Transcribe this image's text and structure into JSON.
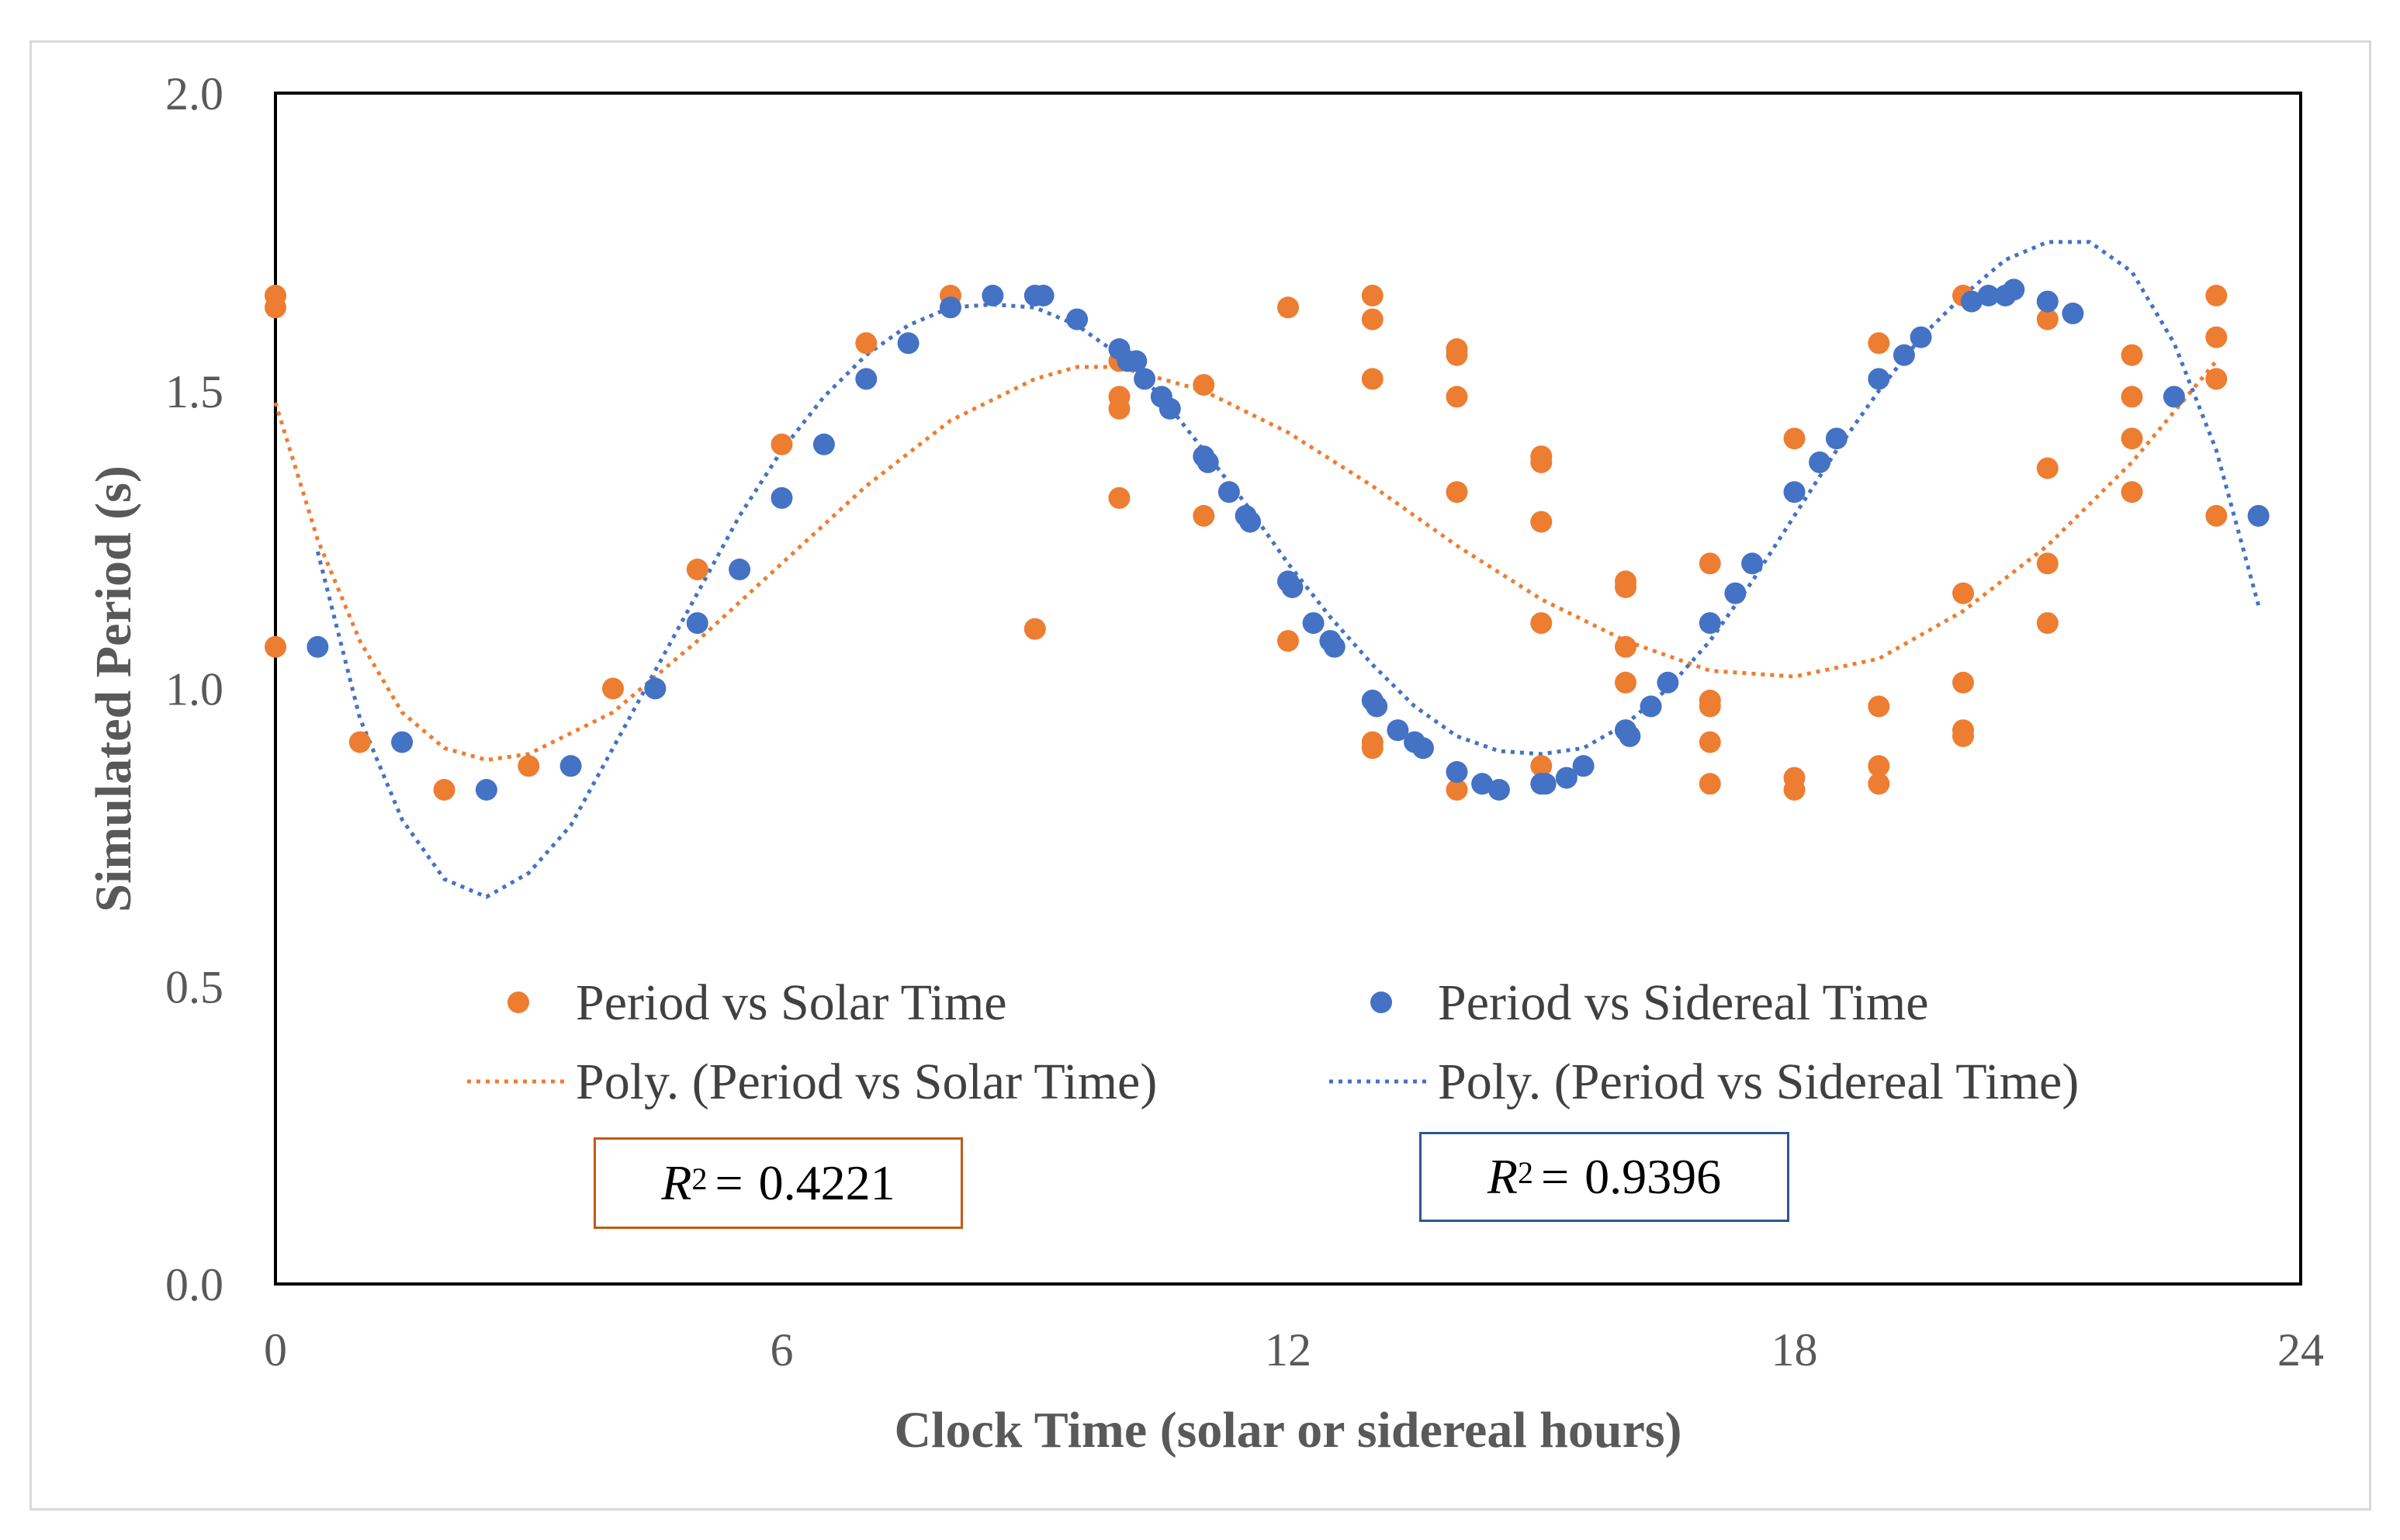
{
  "chart_data": {
    "type": "scatter",
    "title": "",
    "xlabel": "Clock Time (solar or sidereal hours)",
    "ylabel": "Simulated Period (s)",
    "xlim": [
      0,
      24
    ],
    "ylim": [
      0,
      2.0
    ],
    "xticks": [
      "0",
      "6",
      "12",
      "18",
      "24"
    ],
    "yticks": [
      "0.0",
      "0.5",
      "1.0",
      "1.5",
      "2.0"
    ],
    "grid": false,
    "series": [
      {
        "name": "Period vs Solar Time",
        "color": "#ED7D31",
        "points": [
          [
            0,
            1.66
          ],
          [
            0,
            1.64
          ],
          [
            0,
            1.07
          ],
          [
            1,
            0.91
          ],
          [
            2,
            0.83
          ],
          [
            3,
            0.87
          ],
          [
            4,
            1.0
          ],
          [
            5,
            1.2
          ],
          [
            6,
            1.41
          ],
          [
            7,
            1.58
          ],
          [
            8,
            1.66
          ],
          [
            9,
            1.1
          ],
          [
            10,
            1.55
          ],
          [
            10,
            1.49
          ],
          [
            10,
            1.47
          ],
          [
            10,
            1.32
          ],
          [
            11,
            1.51
          ],
          [
            11,
            1.29
          ],
          [
            12,
            1.64
          ],
          [
            12,
            1.08
          ],
          [
            13,
            1.66
          ],
          [
            13,
            1.62
          ],
          [
            13,
            1.52
          ],
          [
            13,
            0.91
          ],
          [
            13,
            0.9
          ],
          [
            14,
            1.57
          ],
          [
            14,
            1.56
          ],
          [
            14,
            1.49
          ],
          [
            14,
            1.33
          ],
          [
            14,
            0.83
          ],
          [
            15,
            1.39
          ],
          [
            15,
            1.38
          ],
          [
            15,
            1.28
          ],
          [
            15,
            1.11
          ],
          [
            15,
            0.87
          ],
          [
            16,
            1.18
          ],
          [
            16,
            1.17
          ],
          [
            16,
            1.07
          ],
          [
            16,
            1.01
          ],
          [
            16,
            0.93
          ],
          [
            17,
            1.21
          ],
          [
            17,
            0.98
          ],
          [
            17,
            0.97
          ],
          [
            17,
            0.91
          ],
          [
            17,
            0.84
          ],
          [
            18,
            1.42
          ],
          [
            18,
            0.85
          ],
          [
            18,
            0.83
          ],
          [
            19,
            1.58
          ],
          [
            19,
            0.97
          ],
          [
            19,
            0.87
          ],
          [
            19,
            0.84
          ],
          [
            20,
            1.66
          ],
          [
            20,
            1.16
          ],
          [
            20,
            1.01
          ],
          [
            20,
            0.93
          ],
          [
            20,
            0.92
          ],
          [
            21,
            1.62
          ],
          [
            21,
            1.37
          ],
          [
            21,
            1.21
          ],
          [
            21,
            1.11
          ],
          [
            22,
            1.56
          ],
          [
            22,
            1.49
          ],
          [
            22,
            1.42
          ],
          [
            22,
            1.33
          ],
          [
            23,
            1.66
          ],
          [
            23,
            1.59
          ],
          [
            23,
            1.52
          ],
          [
            23,
            1.29
          ]
        ]
      },
      {
        "name": "Period vs Sidereal Time",
        "color": "#4472C4",
        "points": [
          [
            0.5,
            1.07
          ],
          [
            1.5,
            0.91
          ],
          [
            2.5,
            0.83
          ],
          [
            3.5,
            0.87
          ],
          [
            4.5,
            1.0
          ],
          [
            5,
            1.11
          ],
          [
            5.5,
            1.2
          ],
          [
            6,
            1.32
          ],
          [
            6.5,
            1.41
          ],
          [
            7,
            1.52
          ],
          [
            7.5,
            1.58
          ],
          [
            8,
            1.64
          ],
          [
            8.5,
            1.66
          ],
          [
            9,
            1.66
          ],
          [
            9.1,
            1.66
          ],
          [
            9.5,
            1.62
          ],
          [
            10,
            1.57
          ],
          [
            10.1,
            1.55
          ],
          [
            10.2,
            1.55
          ],
          [
            10.3,
            1.52
          ],
          [
            10.5,
            1.49
          ],
          [
            10.6,
            1.47
          ],
          [
            11,
            1.39
          ],
          [
            11.05,
            1.38
          ],
          [
            11.3,
            1.33
          ],
          [
            11.5,
            1.29
          ],
          [
            11.55,
            1.28
          ],
          [
            12,
            1.18
          ],
          [
            12.05,
            1.17
          ],
          [
            12.3,
            1.11
          ],
          [
            12.5,
            1.08
          ],
          [
            12.55,
            1.07
          ],
          [
            13,
            0.98
          ],
          [
            13.05,
            0.97
          ],
          [
            13.3,
            0.93
          ],
          [
            13.5,
            0.91
          ],
          [
            13.6,
            0.9
          ],
          [
            14,
            0.86
          ],
          [
            14.3,
            0.84
          ],
          [
            14.5,
            0.83
          ],
          [
            15,
            0.84
          ],
          [
            15.05,
            0.84
          ],
          [
            15.3,
            0.85
          ],
          [
            15.5,
            0.87
          ],
          [
            16,
            0.93
          ],
          [
            16.05,
            0.92
          ],
          [
            16.3,
            0.97
          ],
          [
            16.5,
            1.01
          ],
          [
            17,
            1.11
          ],
          [
            17.3,
            1.16
          ],
          [
            17.5,
            1.21
          ],
          [
            18,
            1.33
          ],
          [
            18.3,
            1.38
          ],
          [
            18.5,
            1.42
          ],
          [
            19,
            1.52
          ],
          [
            19.3,
            1.56
          ],
          [
            19.5,
            1.59
          ],
          [
            20.1,
            1.65
          ],
          [
            20.3,
            1.66
          ],
          [
            20.5,
            1.66
          ],
          [
            20.6,
            1.67
          ],
          [
            21,
            1.65
          ],
          [
            21.3,
            1.63
          ],
          [
            22.5,
            1.49
          ],
          [
            23.5,
            1.29
          ]
        ]
      }
    ],
    "trendlines": [
      {
        "name": "Poly. (Period vs Solar Time)",
        "color": "#ED7D31",
        "points": [
          [
            0,
            1.48
          ],
          [
            0.5,
            1.25
          ],
          [
            1,
            1.08
          ],
          [
            1.5,
            0.96
          ],
          [
            2,
            0.9
          ],
          [
            2.5,
            0.88
          ],
          [
            3,
            0.89
          ],
          [
            4,
            0.96
          ],
          [
            5,
            1.08
          ],
          [
            6,
            1.21
          ],
          [
            7,
            1.34
          ],
          [
            8,
            1.45
          ],
          [
            9,
            1.52
          ],
          [
            9.5,
            1.54
          ],
          [
            10,
            1.54
          ],
          [
            11,
            1.5
          ],
          [
            12,
            1.43
          ],
          [
            13,
            1.34
          ],
          [
            14,
            1.24
          ],
          [
            15,
            1.15
          ],
          [
            16,
            1.08
          ],
          [
            17,
            1.03
          ],
          [
            18,
            1.02
          ],
          [
            19,
            1.05
          ],
          [
            20,
            1.13
          ],
          [
            21,
            1.24
          ],
          [
            22,
            1.38
          ],
          [
            23,
            1.55
          ]
        ]
      },
      {
        "name": "Poly. (Period vs Sidereal Time)",
        "color": "#4472C4",
        "points": [
          [
            0.5,
            1.23
          ],
          [
            1,
            0.95
          ],
          [
            1.5,
            0.78
          ],
          [
            2,
            0.68
          ],
          [
            2.5,
            0.65
          ],
          [
            3,
            0.69
          ],
          [
            3.5,
            0.77
          ],
          [
            4,
            0.9
          ],
          [
            4.5,
            1.03
          ],
          [
            5,
            1.16
          ],
          [
            5.5,
            1.29
          ],
          [
            6,
            1.4
          ],
          [
            6.5,
            1.49
          ],
          [
            7,
            1.56
          ],
          [
            7.5,
            1.61
          ],
          [
            8,
            1.64
          ],
          [
            8.5,
            1.645
          ],
          [
            9,
            1.64
          ],
          [
            9.5,
            1.61
          ],
          [
            10,
            1.56
          ],
          [
            10.5,
            1.49
          ],
          [
            11,
            1.4
          ],
          [
            11.5,
            1.31
          ],
          [
            12,
            1.21
          ],
          [
            12.5,
            1.12
          ],
          [
            13,
            1.04
          ],
          [
            13.5,
            0.97
          ],
          [
            14,
            0.92
          ],
          [
            14.5,
            0.895
          ],
          [
            15,
            0.89
          ],
          [
            15.5,
            0.9
          ],
          [
            16,
            0.94
          ],
          [
            16.5,
            1.0
          ],
          [
            17,
            1.08
          ],
          [
            17.5,
            1.18
          ],
          [
            18,
            1.29
          ],
          [
            18.5,
            1.4
          ],
          [
            19,
            1.5
          ],
          [
            19.5,
            1.59
          ],
          [
            20,
            1.66
          ],
          [
            20.5,
            1.72
          ],
          [
            21,
            1.75
          ],
          [
            21.5,
            1.75
          ],
          [
            22,
            1.7
          ],
          [
            22.5,
            1.58
          ],
          [
            23,
            1.4
          ],
          [
            23.5,
            1.14
          ]
        ]
      }
    ],
    "legend": {
      "placement": "bottom-inside",
      "entries": [
        "Period vs Solar Time",
        "Period vs Sidereal Time",
        "Poly. (Period vs Solar Time)",
        "Poly. (Period vs Sidereal Time)"
      ]
    },
    "annotations": [
      {
        "label": "R²(solar)",
        "var": "R",
        "exp": "2",
        "eq": "=",
        "value": "0.4221",
        "border_color": "#C55A11"
      },
      {
        "label": "R²(sidereal)",
        "var": "R",
        "exp": "2",
        "eq": "=",
        "value": "0.9396",
        "border_color": "#2F5597"
      }
    ]
  }
}
